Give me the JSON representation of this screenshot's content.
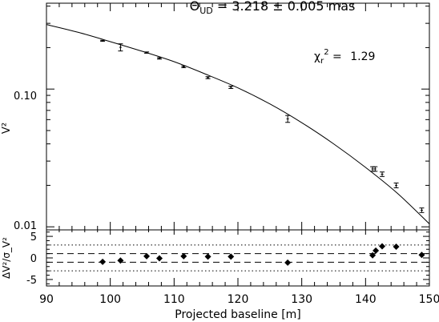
{
  "chart_data": [
    {
      "type": "scatter",
      "title_main": "Θ",
      "title_sub": "UD",
      "title_rest": " = 3.218 ± 0.005 mas",
      "ylabel": "V²",
      "yscale": "log",
      "xlim": [
        90,
        150
      ],
      "ylim": [
        0.0095,
        0.42
      ],
      "ytick_labels": [
        {
          "value": 0.1,
          "label": "0.10"
        },
        {
          "value": 0.01,
          "label": "0.01"
        }
      ],
      "chi_label_main": "χ",
      "chi_label_sub": "r",
      "chi_label_sup": "2",
      "chi_label_eq": " = ",
      "chi_value": "1.29",
      "series": [
        {
          "type": "errorbar",
          "x": [
            98.8,
            101.6,
            105.7,
            107.7,
            111.5,
            115.3,
            118.9,
            127.8,
            141.1,
            141.5,
            142.6,
            144.8,
            148.8
          ],
          "y": [
            0.224,
            0.201,
            0.184,
            0.167,
            0.145,
            0.121,
            0.103,
            0.0608,
            0.0263,
            0.0263,
            0.0241,
            0.02,
            0.0132
          ],
          "err": [
            0.002,
            0.012,
            0.002,
            0.002,
            0.002,
            0.002,
            0.002,
            0.0035,
            0.001,
            0.001,
            0.0009,
            0.0008,
            0.0005
          ]
        },
        {
          "type": "line",
          "x": [
            90,
            95,
            100,
            105,
            110,
            115,
            120,
            125,
            130,
            135,
            140,
            145,
            150
          ],
          "y": [
            0.294,
            0.258,
            0.221,
            0.188,
            0.158,
            0.128,
            0.102,
            0.078,
            0.057,
            0.04,
            0.027,
            0.0175,
            0.0105
          ]
        }
      ]
    },
    {
      "type": "scatter",
      "xlabel": "Projected baseline [m]",
      "ylabel": "ΔV²/σ_V²",
      "xlim": [
        90,
        150
      ],
      "ylim": [
        -6.5,
        6.5
      ],
      "xticks": [
        90,
        100,
        110,
        120,
        130,
        140,
        150
      ],
      "yticks": [
        -5,
        0,
        5
      ],
      "reference_lines": [
        {
          "y": 3,
          "style": "dotted"
        },
        {
          "y": 1,
          "style": "dashed"
        },
        {
          "y": -1,
          "style": "dashed"
        },
        {
          "y": -3,
          "style": "dotted"
        }
      ],
      "series": [
        {
          "marker": "diamond",
          "x": [
            98.8,
            101.6,
            105.7,
            107.7,
            111.5,
            115.3,
            118.9,
            127.8,
            141.1,
            141.6,
            142.6,
            144.8,
            148.8
          ],
          "y": [
            -0.9,
            -0.6,
            0.4,
            -0.1,
            0.4,
            0.3,
            0.3,
            -1.1,
            0.6,
            1.7,
            2.7,
            2.6,
            0.7
          ]
        }
      ]
    }
  ]
}
